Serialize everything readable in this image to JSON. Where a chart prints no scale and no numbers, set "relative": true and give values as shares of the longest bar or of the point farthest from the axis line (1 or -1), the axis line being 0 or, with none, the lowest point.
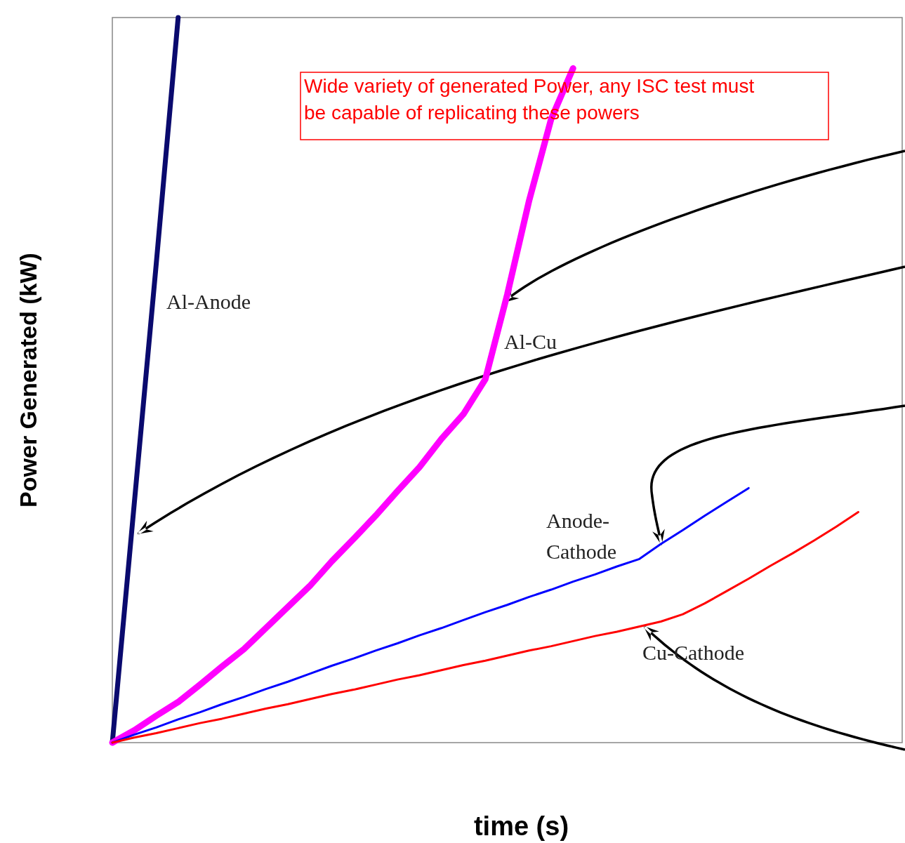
{
  "chart_data": {
    "type": "line",
    "relative": true,
    "xlabel": "time (s)",
    "ylabel": "Power Generated (kW)",
    "annotations": [
      "Wide variety of generated Power, any ISC test must be capable of replicating these powers"
    ],
    "categories": [
      null,
      null,
      null,
      null,
      null,
      null,
      null,
      null,
      null,
      null,
      null,
      null,
      null,
      null,
      null,
      null,
      null,
      null,
      null,
      null,
      null,
      null,
      null,
      null,
      null,
      null,
      null,
      null,
      null,
      null,
      null,
      null,
      null,
      null,
      null,
      null,
      null
    ],
    "series": [
      {
        "name": "Al-Anode",
        "color": "#0a0a6e",
        "values": [
          0,
          0.33,
          0.66,
          1.0,
          null,
          null,
          null,
          null,
          null,
          null,
          null,
          null,
          null,
          null,
          null,
          null,
          null,
          null,
          null,
          null,
          null,
          null,
          null,
          null,
          null,
          null,
          null,
          null,
          null,
          null,
          null,
          null,
          null,
          null,
          null,
          null,
          null
        ]
      },
      {
        "name": "Al-Cu",
        "color": "#ff00ff",
        "values": [
          0,
          0.017,
          0.037,
          0.056,
          0.08,
          0.105,
          0.129,
          0.158,
          0.187,
          0.216,
          0.25,
          0.281,
          0.313,
          0.347,
          0.38,
          0.419,
          0.453,
          0.501,
          0.618,
          0.748,
          0.86,
          0.93,
          null,
          null,
          null,
          null,
          null,
          null,
          null,
          null,
          null,
          null,
          null,
          null,
          null,
          null,
          null
        ]
      },
      {
        "name": "Anode-Cathode",
        "color": "#0000ff",
        "values": [
          0,
          0.011,
          0.021,
          0.032,
          0.042,
          0.053,
          0.063,
          0.074,
          0.084,
          0.095,
          0.106,
          0.116,
          0.127,
          0.137,
          0.148,
          0.158,
          0.169,
          0.18,
          0.19,
          0.201,
          0.211,
          0.222,
          0.232,
          0.243,
          0.253,
          0.274,
          0.293,
          0.313,
          0.332,
          0.351,
          null,
          null,
          null,
          null,
          null,
          null,
          null
        ]
      },
      {
        "name": "Cu-Cathode",
        "color": "#ff0000",
        "values": [
          0,
          0.007,
          0.013,
          0.02,
          0.027,
          0.033,
          0.04,
          0.047,
          0.053,
          0.06,
          0.067,
          0.073,
          0.08,
          0.087,
          0.093,
          0.1,
          0.107,
          0.113,
          0.12,
          0.127,
          0.133,
          0.14,
          0.147,
          0.153,
          0.16,
          0.167,
          0.177,
          0.192,
          0.209,
          0.226,
          0.244,
          0.261,
          0.279,
          0.298,
          0.318,
          null,
          null
        ]
      }
    ]
  }
}
